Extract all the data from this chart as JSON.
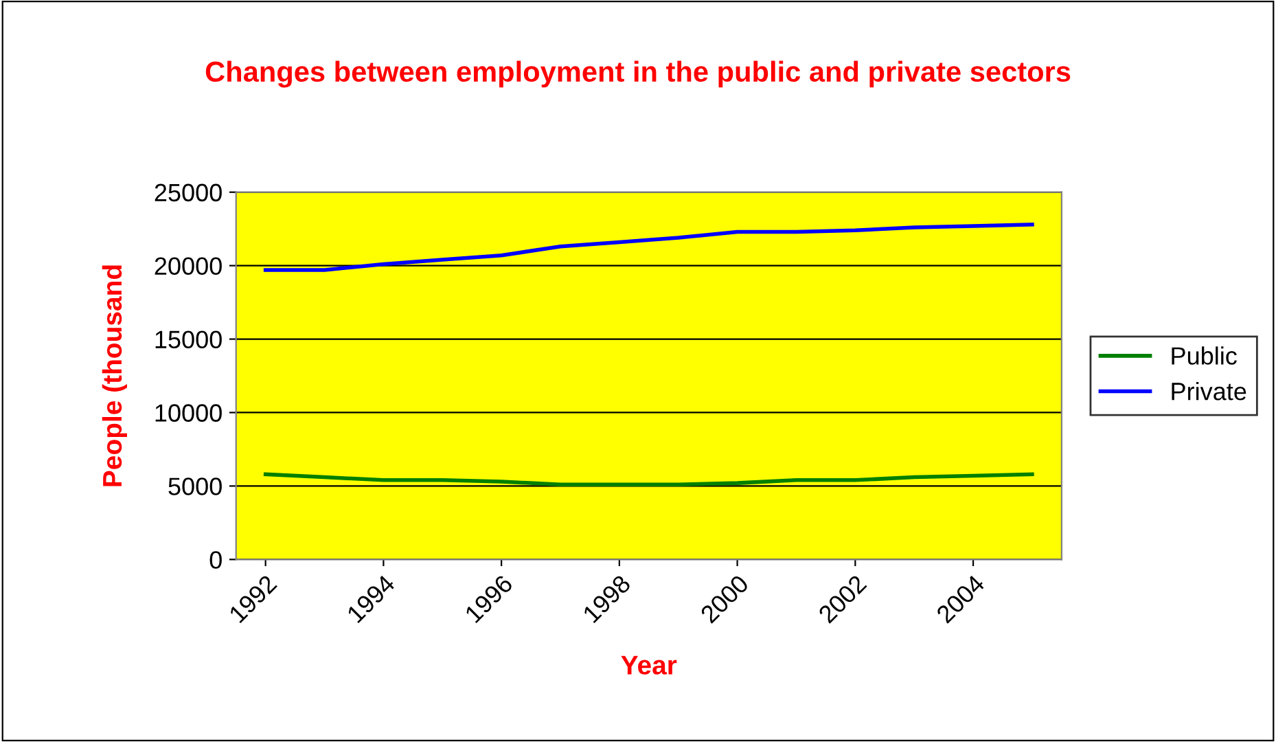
{
  "chart_data": {
    "type": "line",
    "title": "Changes between employment in the public and private sectors",
    "xlabel": "Year",
    "ylabel": "People (thousand",
    "x": [
      1992,
      1993,
      1994,
      1995,
      1996,
      1997,
      1998,
      1999,
      2000,
      2001,
      2002,
      2003,
      2004,
      2005
    ],
    "xlim": [
      1991.5,
      2005.5
    ],
    "xticks": [
      1992,
      1994,
      1996,
      1998,
      2000,
      2002,
      2004
    ],
    "ylim": [
      0,
      25000
    ],
    "yticks": [
      0,
      5000,
      10000,
      15000,
      20000,
      25000
    ],
    "series": [
      {
        "name": "Public",
        "color": "#008000",
        "values": [
          5800,
          5600,
          5400,
          5400,
          5300,
          5100,
          5100,
          5100,
          5200,
          5400,
          5400,
          5600,
          5700,
          5800
        ]
      },
      {
        "name": "Private",
        "color": "#0000ff",
        "values": [
          19700,
          19700,
          20100,
          20400,
          20700,
          21300,
          21600,
          21900,
          22300,
          22300,
          22400,
          22600,
          22700,
          22800
        ]
      }
    ],
    "grid": "y",
    "legend": "right",
    "marker": "none",
    "line_style": "solid"
  }
}
